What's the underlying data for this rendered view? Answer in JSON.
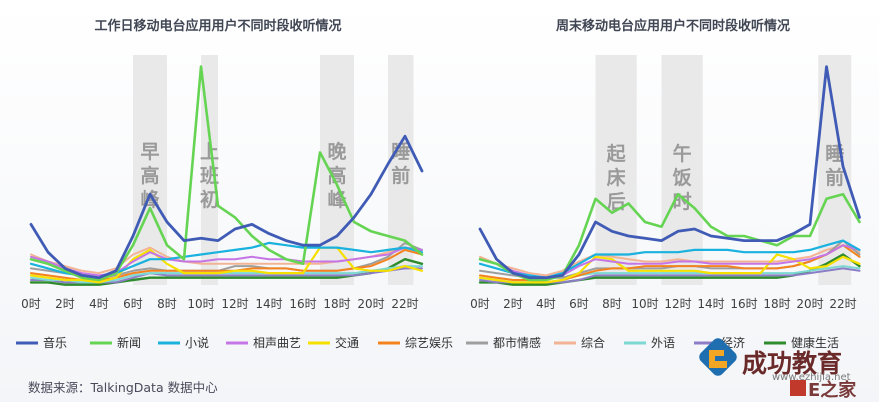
{
  "chart_data": [
    {
      "type": "line",
      "title": "工作日移动电台应用用户不同时段收听情况",
      "x": [
        0,
        1,
        2,
        3,
        4,
        5,
        6,
        7,
        8,
        9,
        10,
        11,
        12,
        13,
        14,
        15,
        16,
        17,
        18,
        19,
        20,
        21,
        22,
        23
      ],
      "x_ticks": [
        "0时",
        "2时",
        "4时",
        "6时",
        "8时",
        "10时",
        "12时",
        "14时",
        "16时",
        "18时",
        "20时",
        "22时"
      ],
      "ylim": [
        0,
        100
      ],
      "highlight_bands": [
        {
          "from": 6,
          "to": 8,
          "label": "早高峰"
        },
        {
          "from": 10,
          "to": 11,
          "label": "上班初"
        },
        {
          "from": 17,
          "to": 19,
          "label": "晚高峰"
        },
        {
          "from": 21,
          "to": 22.5,
          "label": "睡前"
        }
      ],
      "series": [
        {
          "name": "音乐",
          "color": "#3F5BB5",
          "width": 2.8,
          "values": [
            27,
            15,
            8,
            5,
            4,
            7,
            22,
            40,
            28,
            20,
            21,
            20,
            25,
            27,
            23,
            20,
            18,
            18,
            22,
            30,
            40,
            53,
            65,
            50
          ]
        },
        {
          "name": "新闻",
          "color": "#66D453",
          "width": 2.6,
          "values": [
            12,
            10,
            7,
            4,
            3,
            6,
            18,
            34,
            18,
            12,
            95,
            35,
            30,
            22,
            16,
            12,
            10,
            58,
            44,
            28,
            24,
            22,
            20,
            14
          ]
        },
        {
          "name": "小说",
          "color": "#19B2DE",
          "width": 2.2,
          "values": [
            10,
            8,
            6,
            5,
            4,
            6,
            9,
            12,
            12,
            13,
            14,
            15,
            16,
            17,
            19,
            18,
            17,
            17,
            17,
            16,
            15,
            16,
            17,
            15
          ]
        },
        {
          "name": "相声曲艺",
          "color": "#C575E6",
          "width": 2,
          "values": [
            13,
            11,
            8,
            6,
            5,
            6,
            11,
            15,
            12,
            11,
            11,
            12,
            12,
            13,
            12,
            12,
            11,
            11,
            11,
            12,
            13,
            14,
            17,
            16
          ]
        },
        {
          "name": "交通",
          "color": "#F5E000",
          "width": 2.2,
          "values": [
            5,
            4,
            3,
            3,
            2,
            4,
            12,
            16,
            10,
            6,
            6,
            6,
            7,
            7,
            6,
            6,
            6,
            17,
            17,
            8,
            7,
            7,
            9,
            7
          ]
        },
        {
          "name": "综艺娱乐",
          "color": "#F4831F",
          "width": 2,
          "values": [
            6,
            5,
            4,
            3,
            3,
            4,
            6,
            7,
            7,
            7,
            7,
            7,
            7,
            8,
            8,
            8,
            7,
            7,
            7,
            8,
            9,
            12,
            16,
            14
          ]
        },
        {
          "name": "都市情感",
          "color": "#9E9E9E",
          "width": 2,
          "values": [
            8,
            7,
            6,
            5,
            4,
            5,
            7,
            8,
            7,
            7,
            7,
            7,
            9,
            9,
            8,
            8,
            7,
            7,
            7,
            8,
            10,
            13,
            19,
            16
          ]
        },
        {
          "name": "综合",
          "color": "#F2B495",
          "width": 2,
          "values": [
            14,
            11,
            9,
            7,
            6,
            8,
            14,
            17,
            13,
            11,
            10,
            10,
            10,
            10,
            10,
            10,
            10,
            10,
            11,
            12,
            13,
            15,
            17,
            16
          ]
        },
        {
          "name": "外语",
          "color": "#7DD8D2",
          "width": 2,
          "values": [
            4,
            3,
            3,
            2,
            2,
            3,
            5,
            6,
            6,
            6,
            6,
            6,
            6,
            6,
            6,
            6,
            6,
            6,
            6,
            6,
            7,
            8,
            9,
            9
          ]
        },
        {
          "name": "经济",
          "color": "#8C7DC6",
          "width": 2,
          "values": [
            3,
            3,
            2,
            2,
            2,
            2,
            4,
            6,
            5,
            5,
            5,
            5,
            5,
            5,
            5,
            5,
            5,
            5,
            5,
            5,
            6,
            7,
            8,
            8
          ]
        },
        {
          "name": "健康生活",
          "color": "#2E8B2E",
          "width": 2.4,
          "values": [
            2,
            2,
            1,
            1,
            1,
            2,
            3,
            4,
            4,
            4,
            4,
            4,
            4,
            4,
            4,
            4,
            4,
            4,
            4,
            5,
            6,
            8,
            12,
            10
          ]
        }
      ]
    },
    {
      "type": "line",
      "title": "周末移动电台应用用户不同时段收听情况",
      "x": [
        0,
        1,
        2,
        3,
        4,
        5,
        6,
        7,
        8,
        9,
        10,
        11,
        12,
        13,
        14,
        15,
        16,
        17,
        18,
        19,
        20,
        21,
        22,
        23
      ],
      "x_ticks": [
        "0时",
        "2时",
        "4时",
        "6时",
        "8时",
        "10时",
        "12时",
        "14时",
        "16时",
        "18时",
        "20时",
        "22时"
      ],
      "ylim": [
        0,
        100
      ],
      "highlight_bands": [
        {
          "from": 7,
          "to": 9.5,
          "label": "起床后"
        },
        {
          "from": 11,
          "to": 13.5,
          "label": "午饭时"
        },
        {
          "from": 20.5,
          "to": 22.5,
          "label": "睡前"
        }
      ],
      "series": [
        {
          "name": "音乐",
          "color": "#3F5BB5",
          "width": 2.8,
          "values": [
            25,
            12,
            6,
            4,
            4,
            5,
            14,
            28,
            24,
            22,
            21,
            20,
            24,
            25,
            22,
            21,
            20,
            20,
            20,
            23,
            27,
            95,
            52,
            30
          ]
        },
        {
          "name": "新闻",
          "color": "#66D453",
          "width": 2.6,
          "values": [
            12,
            10,
            6,
            3,
            3,
            5,
            18,
            38,
            32,
            36,
            28,
            26,
            40,
            34,
            26,
            22,
            22,
            20,
            18,
            22,
            22,
            38,
            40,
            28
          ]
        },
        {
          "name": "小说",
          "color": "#19B2DE",
          "width": 2.2,
          "values": [
            10,
            8,
            6,
            5,
            4,
            6,
            10,
            14,
            14,
            14,
            15,
            15,
            15,
            16,
            16,
            16,
            15,
            15,
            15,
            15,
            16,
            18,
            20,
            16
          ]
        },
        {
          "name": "相声曲艺",
          "color": "#C575E6",
          "width": 2,
          "values": [
            12,
            10,
            7,
            5,
            4,
            5,
            9,
            12,
            11,
            10,
            10,
            10,
            11,
            11,
            10,
            10,
            10,
            10,
            10,
            11,
            12,
            14,
            18,
            16
          ]
        },
        {
          "name": "交通",
          "color": "#F5E000",
          "width": 2.2,
          "values": [
            4,
            3,
            2,
            2,
            2,
            3,
            6,
            13,
            12,
            7,
            7,
            7,
            7,
            7,
            6,
            6,
            6,
            6,
            14,
            12,
            8,
            9,
            13,
            10
          ]
        },
        {
          "name": "综艺娱乐",
          "color": "#F4831F",
          "width": 2,
          "values": [
            5,
            4,
            3,
            3,
            2,
            3,
            5,
            7,
            8,
            8,
            9,
            9,
            9,
            9,
            9,
            9,
            8,
            8,
            8,
            9,
            11,
            14,
            18,
            13
          ]
        },
        {
          "name": "都市情感",
          "color": "#9E9E9E",
          "width": 2,
          "values": [
            7,
            6,
            5,
            4,
            4,
            4,
            6,
            8,
            8,
            8,
            8,
            8,
            9,
            9,
            8,
            8,
            8,
            8,
            8,
            9,
            11,
            14,
            20,
            14
          ]
        },
        {
          "name": "综合",
          "color": "#F2B495",
          "width": 2,
          "values": [
            13,
            10,
            8,
            6,
            5,
            7,
            11,
            14,
            13,
            12,
            11,
            11,
            12,
            11,
            11,
            11,
            11,
            11,
            11,
            12,
            13,
            16,
            18,
            15
          ]
        },
        {
          "name": "外语",
          "color": "#7DD8D2",
          "width": 2,
          "values": [
            4,
            3,
            2,
            2,
            2,
            3,
            5,
            6,
            6,
            6,
            6,
            6,
            6,
            6,
            6,
            6,
            6,
            6,
            6,
            6,
            7,
            8,
            9,
            8
          ]
        },
        {
          "name": "经济",
          "color": "#8C7DC6",
          "width": 2,
          "values": [
            3,
            2,
            2,
            2,
            2,
            2,
            3,
            5,
            5,
            5,
            5,
            5,
            5,
            5,
            5,
            5,
            5,
            5,
            5,
            5,
            6,
            7,
            8,
            7
          ]
        },
        {
          "name": "健康生活",
          "color": "#2E8B2E",
          "width": 2.4,
          "values": [
            2,
            2,
            1,
            1,
            1,
            2,
            3,
            4,
            4,
            4,
            4,
            4,
            4,
            4,
            4,
            4,
            4,
            4,
            4,
            5,
            7,
            10,
            14,
            9
          ]
        }
      ]
    }
  ],
  "source_text": "数据来源：TalkingData 数据中心",
  "watermark": {
    "text_main": "成功教育",
    "text_sub": "E之家",
    "url": "www.ezhijia.net"
  }
}
